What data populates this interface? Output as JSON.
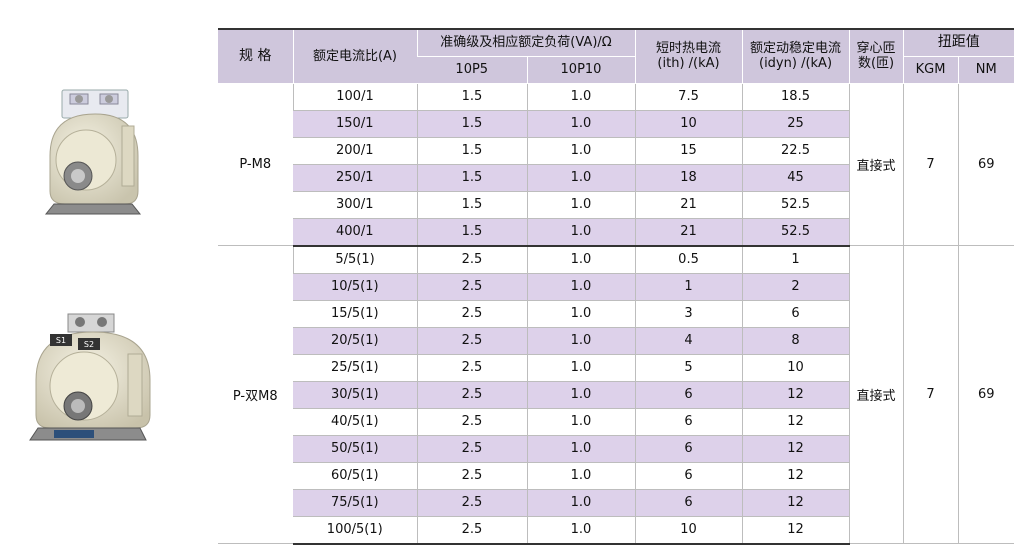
{
  "headers": {
    "spec": "规 格",
    "ratio": "额定电流比(A)",
    "accuracy": "准确级及相应额定负荷(VA)/Ω",
    "acc_10p5": "10P5",
    "acc_10p10": "10P10",
    "ith_line1": "短时热电流",
    "ith_line2": "(ith) /(kA)",
    "idyn_line1": "额定动稳定电流",
    "idyn_line2": "(idyn) /(kA)",
    "core_line1": "穿心匝",
    "core_line2": "数(匝)",
    "torque": "扭距值",
    "kgm": "KGM",
    "nm": "NM"
  },
  "groups": [
    {
      "model": "P-M8",
      "core": "直接式",
      "kgm": "7",
      "nm": "69",
      "rows": [
        {
          "ratio": "100/1",
          "p5": "1.5",
          "p10": "1.0",
          "ith": "7.5",
          "idyn": "18.5"
        },
        {
          "ratio": "150/1",
          "p5": "1.5",
          "p10": "1.0",
          "ith": "10",
          "idyn": "25"
        },
        {
          "ratio": "200/1",
          "p5": "1.5",
          "p10": "1.0",
          "ith": "15",
          "idyn": "22.5"
        },
        {
          "ratio": "250/1",
          "p5": "1.5",
          "p10": "1.0",
          "ith": "18",
          "idyn": "45"
        },
        {
          "ratio": "300/1",
          "p5": "1.5",
          "p10": "1.0",
          "ith": "21",
          "idyn": "52.5"
        },
        {
          "ratio": "400/1",
          "p5": "1.5",
          "p10": "1.0",
          "ith": "21",
          "idyn": "52.5"
        }
      ]
    },
    {
      "model": "P-双M8",
      "core": "直接式",
      "kgm": "7",
      "nm": "69",
      "rows": [
        {
          "ratio": "5/5(1)",
          "p5": "2.5",
          "p10": "1.0",
          "ith": "0.5",
          "idyn": "1"
        },
        {
          "ratio": "10/5(1)",
          "p5": "2.5",
          "p10": "1.0",
          "ith": "1",
          "idyn": "2"
        },
        {
          "ratio": "15/5(1)",
          "p5": "2.5",
          "p10": "1.0",
          "ith": "3",
          "idyn": "6"
        },
        {
          "ratio": "20/5(1)",
          "p5": "2.5",
          "p10": "1.0",
          "ith": "4",
          "idyn": "8"
        },
        {
          "ratio": "25/5(1)",
          "p5": "2.5",
          "p10": "1.0",
          "ith": "5",
          "idyn": "10"
        },
        {
          "ratio": "30/5(1)",
          "p5": "2.5",
          "p10": "1.0",
          "ith": "6",
          "idyn": "12"
        },
        {
          "ratio": "40/5(1)",
          "p5": "2.5",
          "p10": "1.0",
          "ith": "6",
          "idyn": "12"
        },
        {
          "ratio": "50/5(1)",
          "p5": "2.5",
          "p10": "1.0",
          "ith": "6",
          "idyn": "12"
        },
        {
          "ratio": "60/5(1)",
          "p5": "2.5",
          "p10": "1.0",
          "ith": "6",
          "idyn": "12"
        },
        {
          "ratio": "75/5(1)",
          "p5": "2.5",
          "p10": "1.0",
          "ith": "6",
          "idyn": "12"
        },
        {
          "ratio": "100/5(1)",
          "p5": "2.5",
          "p10": "1.0",
          "ith": "10",
          "idyn": "12"
        }
      ]
    }
  ],
  "photos": {
    "p_m8": {
      "icon": "current-transformer-photo"
    },
    "p_double_m8": {
      "icon": "double-current-transformer-photo",
      "label_s1": "S1",
      "label_s2": "S2"
    }
  }
}
